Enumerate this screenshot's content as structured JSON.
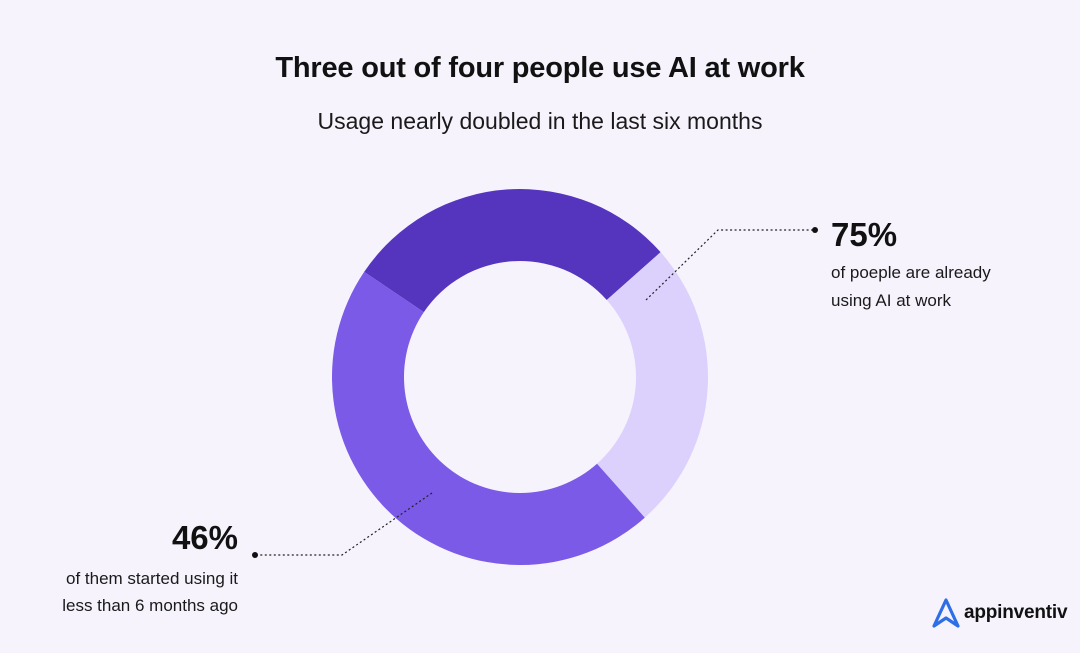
{
  "chart_data": {
    "type": "pie",
    "title": "Three out of four people use AI at work",
    "subtitle": "Usage nearly doubled in the last six months",
    "slices": [
      {
        "value": 29,
        "color": "#5535be"
      },
      {
        "value": 25,
        "color": "#dcd1fd"
      },
      {
        "value": 46,
        "color": "#7a5ae6"
      }
    ],
    "annotations": [
      {
        "value": "75%",
        "line1": "of poeple are already",
        "line2": "using AI at work"
      },
      {
        "value": "46%",
        "line1": "of them started using it",
        "line2": "less than 6 months ago"
      }
    ]
  },
  "brand": {
    "name": "appinventiv",
    "logo_icon": "appinventiv-logo-icon",
    "color": "#2f6fe6"
  }
}
